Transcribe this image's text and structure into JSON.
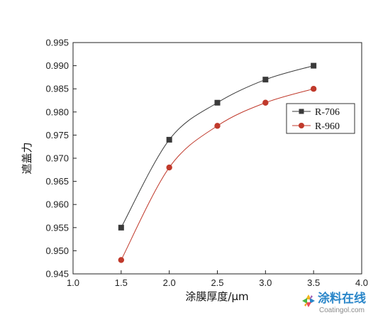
{
  "chart_data": {
    "type": "line",
    "xlabel": "涂膜厚度/μm",
    "ylabel": "遮盖力",
    "xlim": [
      1.0,
      4.0
    ],
    "ylim": [
      0.945,
      0.995
    ],
    "x_ticks": [
      "1.0",
      "1.5",
      "2.0",
      "2.5",
      "3.0",
      "3.5",
      "4.0"
    ],
    "y_ticks": [
      "0.945",
      "0.950",
      "0.955",
      "0.960",
      "0.965",
      "0.970",
      "0.975",
      "0.980",
      "0.985",
      "0.990",
      "0.995"
    ],
    "grid": false,
    "legend_position": "right",
    "x": [
      1.5,
      2.0,
      2.5,
      3.0,
      3.5
    ],
    "series": [
      {
        "name": "R-706",
        "marker": "square",
        "color": "#3a3a3a",
        "values": [
          0.955,
          0.974,
          0.982,
          0.987,
          0.99
        ]
      },
      {
        "name": "R-960",
        "marker": "circle",
        "color": "#c0392b",
        "values": [
          0.948,
          0.968,
          0.977,
          0.982,
          0.985
        ]
      }
    ]
  },
  "watermark": {
    "text_cn": "涂料在线",
    "text_en": "Coatingol.com"
  }
}
